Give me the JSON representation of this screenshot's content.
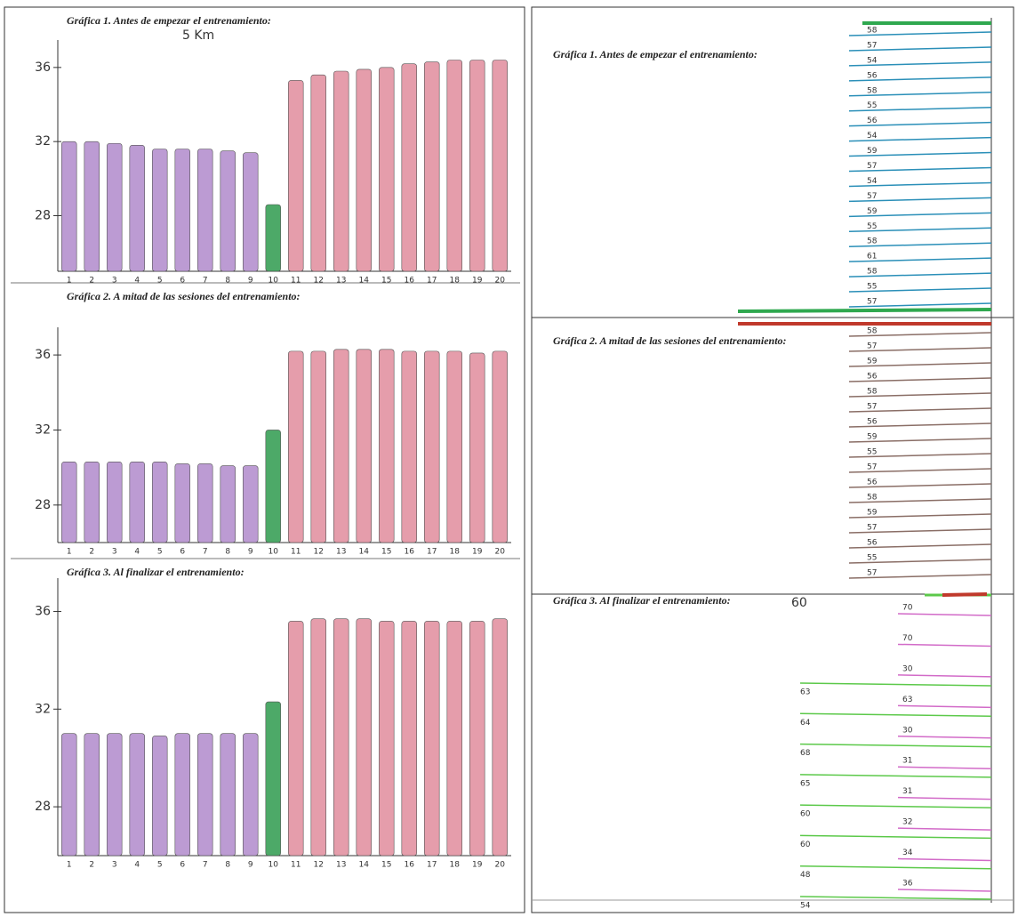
{
  "chart_data": [
    {
      "type": "bar",
      "title": "Gráfica 1. Antes de empezar el entrenamiento:",
      "annotation": "5 Km",
      "categories": [
        "1",
        "2",
        "3",
        "4",
        "5",
        "6",
        "7",
        "8",
        "9",
        "10",
        "11",
        "12",
        "13",
        "14",
        "15",
        "16",
        "17",
        "18",
        "19",
        "20"
      ],
      "values": [
        32,
        32,
        31.9,
        31.8,
        31.6,
        31.6,
        31.6,
        31.5,
        31.4,
        28.6,
        35.3,
        35.6,
        35.8,
        35.9,
        36.0,
        36.2,
        36.3,
        36.4,
        36.4,
        36.4
      ],
      "colors": [
        "#b08acb",
        "#b08acb",
        "#b08acb",
        "#b08acb",
        "#b08acb",
        "#b08acb",
        "#b08acb",
        "#b08acb",
        "#b08acb",
        "#2e9a4e",
        "#e08c9c",
        "#e08c9c",
        "#e08c9c",
        "#e08c9c",
        "#e08c9c",
        "#e08c9c",
        "#e08c9c",
        "#e08c9c",
        "#e08c9c",
        "#e08c9c"
      ],
      "ylim": [
        25,
        37
      ],
      "yticks": [
        28,
        32,
        36
      ]
    },
    {
      "type": "bar",
      "title": "Gráfica 2. A mitad de las sesiones del entrenamiento:",
      "categories": [
        "1",
        "2",
        "3",
        "4",
        "5",
        "6",
        "7",
        "8",
        "9",
        "10",
        "11",
        "12",
        "13",
        "14",
        "15",
        "16",
        "17",
        "18",
        "19",
        "20"
      ],
      "values": [
        30.3,
        30.3,
        30.3,
        30.3,
        30.3,
        30.2,
        30.2,
        30.1,
        30.1,
        32.0,
        36.2,
        36.2,
        36.3,
        36.3,
        36.3,
        36.2,
        36.2,
        36.2,
        36.1,
        36.2
      ],
      "colors": [
        "#b08acb",
        "#b08acb",
        "#b08acb",
        "#b08acb",
        "#b08acb",
        "#b08acb",
        "#b08acb",
        "#b08acb",
        "#b08acb",
        "#2e9a4e",
        "#e08c9c",
        "#e08c9c",
        "#e08c9c",
        "#e08c9c",
        "#e08c9c",
        "#e08c9c",
        "#e08c9c",
        "#e08c9c",
        "#e08c9c",
        "#e08c9c"
      ],
      "ylim": [
        26,
        37
      ],
      "yticks": [
        28,
        32,
        36
      ]
    },
    {
      "type": "bar",
      "title": "Gráfica 3. Al finalizar el entrenamiento:",
      "categories": [
        "1",
        "2",
        "3",
        "4",
        "5",
        "6",
        "7",
        "8",
        "9",
        "10",
        "11",
        "12",
        "13",
        "14",
        "15",
        "16",
        "17",
        "18",
        "19",
        "20"
      ],
      "values": [
        31.0,
        31.0,
        31.0,
        31.0,
        30.9,
        31.0,
        31.0,
        31.0,
        31.0,
        32.3,
        35.6,
        35.7,
        35.7,
        35.7,
        35.6,
        35.6,
        35.6,
        35.6,
        35.6,
        35.7
      ],
      "colors": [
        "#b08acb",
        "#b08acb",
        "#b08acb",
        "#b08acb",
        "#b08acb",
        "#b08acb",
        "#b08acb",
        "#b08acb",
        "#b08acb",
        "#2e9a4e",
        "#e08c9c",
        "#e08c9c",
        "#e08c9c",
        "#e08c9c",
        "#e08c9c",
        "#e08c9c",
        "#e08c9c",
        "#e08c9c",
        "#e08c9c",
        "#e08c9c"
      ],
      "ylim": [
        26,
        37
      ],
      "yticks": [
        28,
        32,
        36
      ]
    }
  ],
  "right_panel": {
    "sections": [
      {
        "title": "Gráfica 1. Antes de empezar el entrenamiento:",
        "line_color": "#2a8fb8",
        "edge_color": "#2fa84f",
        "lines": [
          "58",
          "57",
          "54",
          "56",
          "58",
          "55",
          "56",
          "54",
          "59",
          "57",
          "54",
          "57",
          "59",
          "55",
          "58",
          "61",
          "58",
          "55",
          "57"
        ]
      },
      {
        "title": "Gráfica 2. A mitad de las sesiones del entrenamiento:",
        "line_color": "#8a6e66",
        "edge_color": "#c0392b",
        "lines": [
          "58",
          "57",
          "59",
          "56",
          "58",
          "57",
          "56",
          "59",
          "55",
          "57",
          "56",
          "58",
          "59",
          "57",
          "56",
          "55",
          "57"
        ]
      },
      {
        "title": "Gráfica 3. Al finalizar el entrenamiento:",
        "start_label": "60",
        "line_color": "#d26bc8",
        "edge_color": "#5cc94a",
        "lines": [
          "70",
          "70",
          "30",
          "63",
          "30",
          "31",
          "31",
          "32",
          "34",
          "36"
        ],
        "green_lines": [
          "63",
          "64",
          "68",
          "65",
          "60",
          "60",
          "48",
          "54"
        ]
      }
    ]
  }
}
